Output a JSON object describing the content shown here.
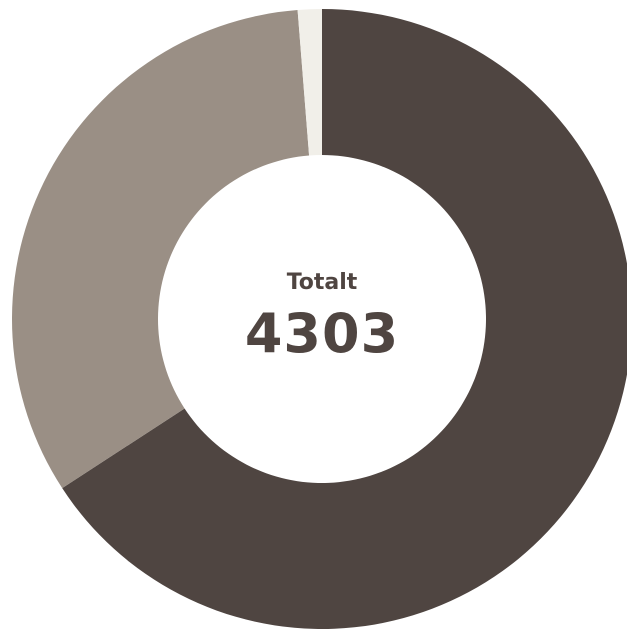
{
  "chart_data": {
    "type": "pie",
    "variant": "donut",
    "center_title": "Totalt",
    "center_value": "4303",
    "total": 4303,
    "slices": [
      {
        "value": 2832,
        "color": "#4f4541"
      },
      {
        "value": 1417,
        "color": "#9a8f85"
      },
      {
        "value": 54,
        "color": "#f1efe9"
      }
    ]
  }
}
